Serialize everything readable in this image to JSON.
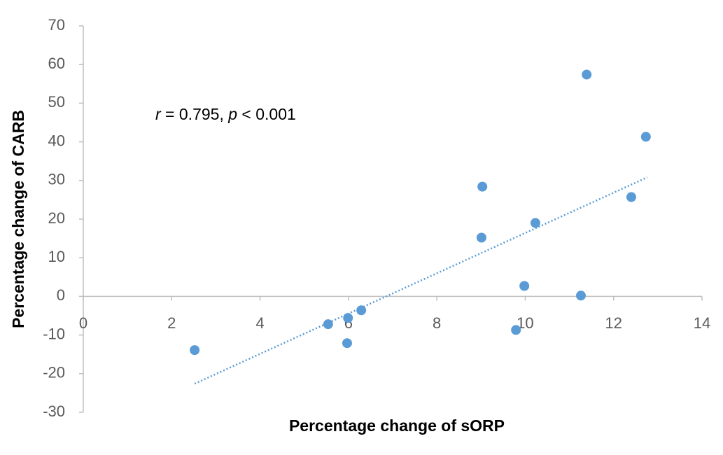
{
  "chart_data": {
    "type": "scatter",
    "x_label": "Percentage change of sORP",
    "y_label": "Percentage change of CARB",
    "annotation": [
      {
        "text": "r",
        "italic": true
      },
      {
        "text": " = 0.795, "
      },
      {
        "text": "p",
        "italic": true
      },
      {
        "text": " < 0.001"
      }
    ],
    "series": [
      {
        "color": "#5b9bd5",
        "x": [
          2.52,
          5.54,
          5.99,
          5.97,
          6.29,
          9.03,
          9.01,
          9.79,
          9.98,
          10.23,
          11.26,
          11.39,
          12.4,
          12.73
        ],
        "values": [
          -13.9,
          -7.2,
          -5.6,
          -12.1,
          -3.6,
          28.4,
          15.2,
          -8.7,
          2.7,
          19.0,
          0.2,
          57.4,
          25.7,
          41.3
        ]
      }
    ],
    "trendline": {
      "x": [
        2.52,
        12.76
      ],
      "values": [
        -22.6,
        30.8
      ],
      "color": "#5b9bd5"
    },
    "xlim": [
      0,
      14
    ],
    "xticks": [
      0,
      2,
      4,
      6,
      8,
      10,
      12,
      14
    ],
    "ylim": [
      -30,
      70
    ],
    "yticks": [
      -30,
      -20,
      -10,
      0,
      10,
      20,
      30,
      40,
      50,
      60,
      70
    ]
  }
}
